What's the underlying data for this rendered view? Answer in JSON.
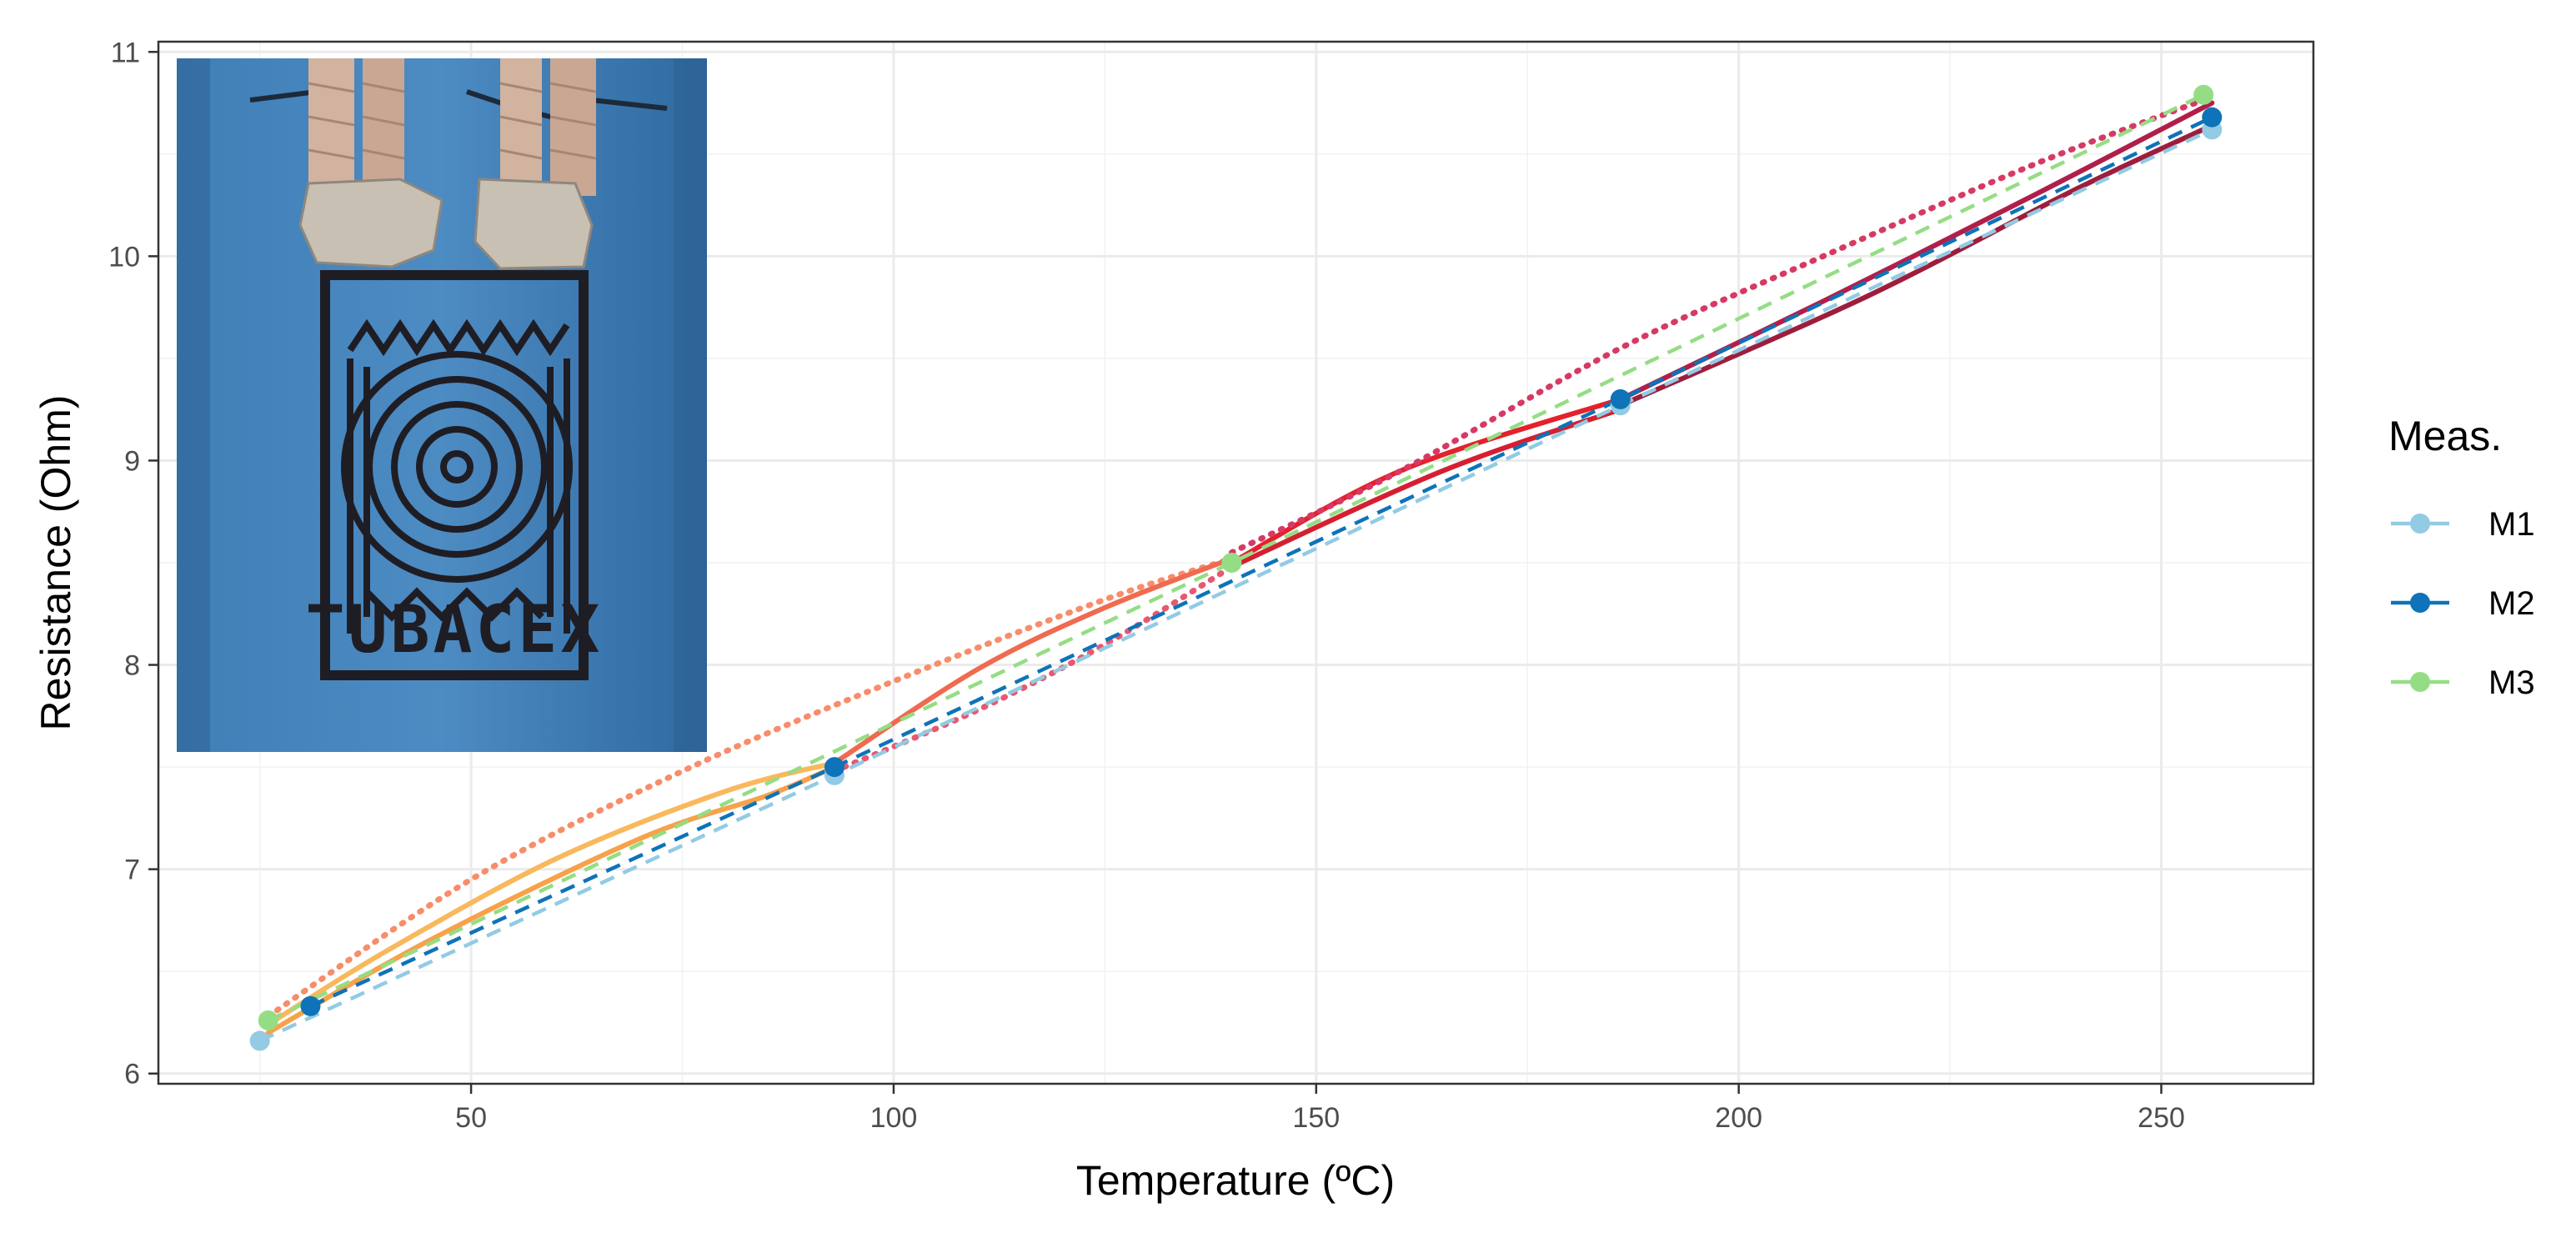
{
  "chart_data": {
    "type": "line",
    "title": "",
    "xlabel": "Temperature (ºC)",
    "ylabel": "Resistance (Ohm)",
    "xlim": [
      13,
      268
    ],
    "ylim": [
      5.95,
      11.05
    ],
    "x_ticks": [
      50,
      100,
      150,
      200,
      250
    ],
    "y_ticks": [
      6,
      7,
      8,
      9,
      10,
      11
    ],
    "x_tick_labels": [
      "50",
      "100",
      "150",
      "200",
      "250"
    ],
    "y_tick_labels": [
      "6",
      "7",
      "8",
      "9",
      "10",
      "11"
    ],
    "grid": true,
    "legend": {
      "title": "Meas.",
      "placement": "right",
      "entries": [
        {
          "label": "M1",
          "color": "#92cbe3"
        },
        {
          "label": "M2",
          "color": "#0e73b8"
        },
        {
          "label": "M3",
          "color": "#95dd85"
        }
      ]
    },
    "series": [
      {
        "name": "M1",
        "color": "#92cbe3",
        "style": "dashed",
        "x": [
          25,
          93,
          186,
          256
        ],
        "y": [
          6.16,
          7.46,
          9.27,
          10.62
        ]
      },
      {
        "name": "M2",
        "color": "#0e73b8",
        "style": "dashed",
        "x": [
          31,
          93,
          186,
          256
        ],
        "y": [
          6.33,
          7.5,
          9.3,
          10.68
        ]
      },
      {
        "name": "M3",
        "color": "#95dd85",
        "style": "dashed",
        "x": [
          26,
          140,
          255
        ],
        "y": [
          6.26,
          8.5,
          10.79
        ]
      }
    ],
    "curves": [
      {
        "style": "solid",
        "color": "#f9b85c",
        "x": [
          26,
          40,
          60,
          80,
          93
        ],
        "y": [
          6.24,
          6.6,
          7.05,
          7.38,
          7.52
        ]
      },
      {
        "style": "solid",
        "color": "#f7a24a",
        "x": [
          26,
          45,
          70,
          85,
          93
        ],
        "y": [
          6.2,
          6.65,
          7.15,
          7.36,
          7.5
        ]
      },
      {
        "style": "dotted",
        "color": "#f78d6a",
        "x": [
          26,
          50,
          75,
          100,
          125,
          140
        ],
        "y": [
          6.28,
          6.95,
          7.48,
          7.92,
          8.32,
          8.52
        ]
      },
      {
        "style": "solid",
        "color": "#ef6b4f",
        "x": [
          93,
          110,
          125,
          140
        ],
        "y": [
          7.52,
          7.98,
          8.28,
          8.52
        ]
      },
      {
        "style": "dotted",
        "color": "#e8586f",
        "x": [
          93,
          110,
          125,
          140
        ],
        "y": [
          7.48,
          7.78,
          8.1,
          8.48
        ]
      },
      {
        "style": "solid",
        "color": "#e4212c",
        "x": [
          140,
          160,
          186
        ],
        "y": [
          8.5,
          8.95,
          9.3
        ]
      },
      {
        "style": "solid",
        "color": "#d51f30",
        "x": [
          140,
          165,
          186
        ],
        "y": [
          8.48,
          8.95,
          9.25
        ]
      },
      {
        "style": "dotted",
        "color": "#d63a64",
        "x": [
          140,
          160,
          186,
          210,
          235,
          256
        ],
        "y": [
          8.55,
          8.95,
          9.55,
          10.0,
          10.45,
          10.78
        ]
      },
      {
        "style": "solid",
        "color": "#b01f4a",
        "x": [
          186,
          210,
          235,
          256
        ],
        "y": [
          9.3,
          9.78,
          10.3,
          10.75
        ]
      },
      {
        "style": "solid",
        "color": "#9e1d3d",
        "x": [
          186,
          215,
          240,
          256
        ],
        "y": [
          9.27,
          9.8,
          10.33,
          10.64
        ]
      }
    ],
    "inset_photo": {
      "text": "TUBACEX"
    }
  }
}
